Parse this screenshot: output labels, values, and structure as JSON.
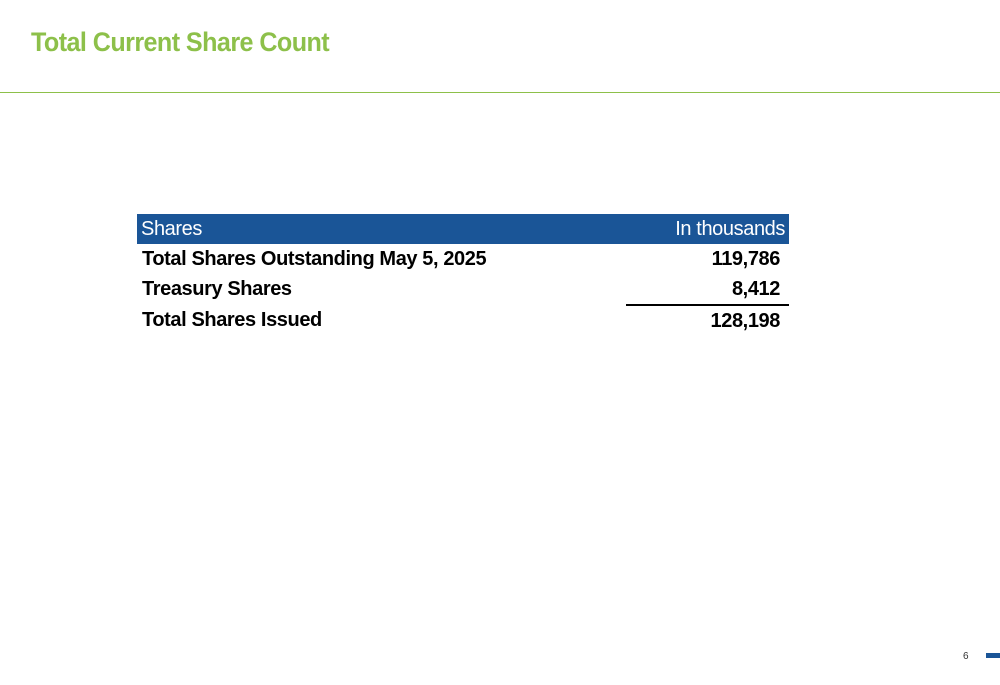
{
  "slide": {
    "title": "Total Current Share Count",
    "page_number": "6"
  },
  "colors": {
    "title_accent": "#8dc04a",
    "header_fill": "#1a5597",
    "footer_mark": "#1a5597"
  },
  "table": {
    "header": {
      "label": "Shares",
      "value": "In thousands"
    },
    "rows": [
      {
        "label": "Total Shares Outstanding May 5, 2025",
        "value": "119,786"
      },
      {
        "label": "Treasury Shares",
        "value": "8,412"
      },
      {
        "label": "Total Shares Issued",
        "value": "128,198"
      }
    ]
  }
}
